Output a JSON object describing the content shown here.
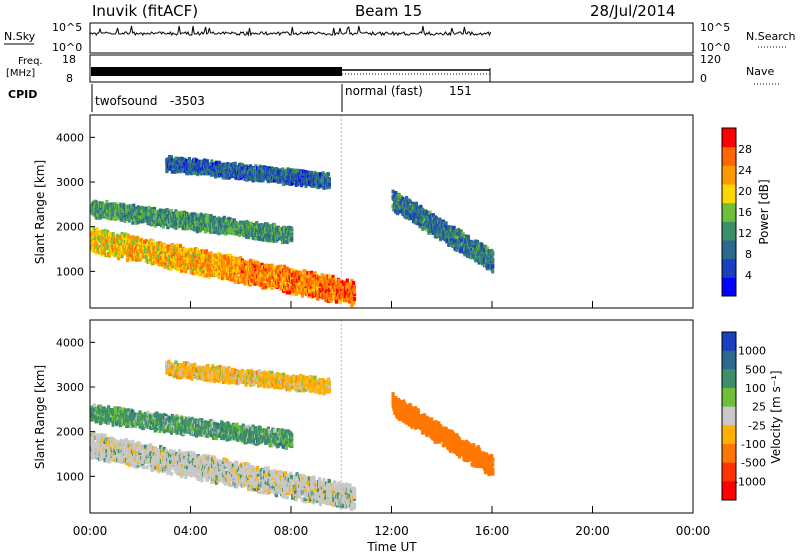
{
  "header": {
    "station": "Inuvik (fitACF)",
    "beam": "Beam 15",
    "date": "28/Jul/2014"
  },
  "top_panels": {
    "nsky_label": "N.Sky",
    "nsky_ticks": [
      "10^5",
      "10^0"
    ],
    "nsky_right_ticks": [
      "10^5",
      "10^0"
    ],
    "freq_label": "Freq.",
    "freq_unit": "[MHz]",
    "freq_ticks": [
      "18",
      "8"
    ],
    "nave_ticks": [
      "120",
      "0"
    ],
    "nsearch_label": "N.Search",
    "nave_label": "Nave",
    "cpid_label": "CPID",
    "cpid_entries": [
      {
        "name": "twofsound",
        "id": "-3503",
        "start": "00:00",
        "end": "10:00"
      },
      {
        "name": "normal (fast)",
        "id": "151",
        "start": "10:00",
        "end": "16:00"
      }
    ]
  },
  "chart_data": [
    {
      "type": "heatmap",
      "panel": "power",
      "ylabel": "Slant Range [km]",
      "yticks": [
        1000,
        2000,
        3000,
        4000
      ],
      "ylim": [
        180,
        4500
      ],
      "x_range": [
        "00:00",
        "00:00"
      ],
      "data_coverage": [
        "00:00",
        "16:00"
      ],
      "colorbar": {
        "label": "Power [dB]",
        "ticks": [
          4,
          8,
          12,
          16,
          20,
          24,
          28
        ],
        "range": [
          0,
          32
        ],
        "colors": [
          "#0000ff",
          "#1a3fbf",
          "#2b6a8f",
          "#3d8f6a",
          "#6fbf3a",
          "#ffd700",
          "#ff9900",
          "#ff6600",
          "#ff0000"
        ]
      },
      "echo_bands": [
        {
          "t_start": 0.0,
          "t_end": 10.5,
          "r_start": 1700,
          "r_end": 500,
          "width": 500,
          "value": 22
        },
        {
          "t_start": 0.0,
          "t_end": 8.0,
          "r_start": 2400,
          "r_end": 1800,
          "width": 300,
          "value": 14
        },
        {
          "t_start": 3.0,
          "t_end": 9.5,
          "r_start": 3400,
          "r_end": 3000,
          "width": 250,
          "value": 9
        },
        {
          "t_start": 12.0,
          "t_end": 16.0,
          "r_start": 2600,
          "r_end": 1200,
          "width": 400,
          "value": 11
        }
      ]
    },
    {
      "type": "heatmap",
      "panel": "velocity",
      "ylabel": "Slant Range [km]",
      "yticks": [
        1000,
        2000,
        3000,
        4000
      ],
      "ylim": [
        180,
        4500
      ],
      "xticks": [
        "00:00",
        "04:00",
        "08:00",
        "12:00",
        "16:00",
        "20:00",
        "00:00"
      ],
      "xlabel": "Time UT",
      "x_range": [
        "00:00",
        "00:00"
      ],
      "data_coverage": [
        "00:00",
        "16:00"
      ],
      "colorbar": {
        "label": "Velocity [m s⁻¹]",
        "ticks": [
          1000,
          500,
          100,
          25,
          -25,
          -100,
          -500,
          -1000
        ],
        "colors": [
          "#1a3fbf",
          "#2b6a8f",
          "#3d8f6a",
          "#6fbf3a",
          "#c8c8c8",
          "#ffb000",
          "#ff7700",
          "#ff3300",
          "#ff0000"
        ]
      },
      "echo_bands": [
        {
          "t_start": 0.0,
          "t_end": 10.5,
          "r_start": 1700,
          "r_end": 500,
          "width": 500,
          "value": "ground scatter"
        },
        {
          "t_start": 0.0,
          "t_end": 8.0,
          "r_start": 2400,
          "r_end": 1800,
          "width": 300,
          "value": 50
        },
        {
          "t_start": 3.0,
          "t_end": 9.5,
          "r_start": 3400,
          "r_end": 3000,
          "width": 250,
          "value": -50
        },
        {
          "t_start": 12.0,
          "t_end": 16.0,
          "r_start": 2600,
          "r_end": 1200,
          "width": 400,
          "value": -200
        }
      ]
    }
  ]
}
